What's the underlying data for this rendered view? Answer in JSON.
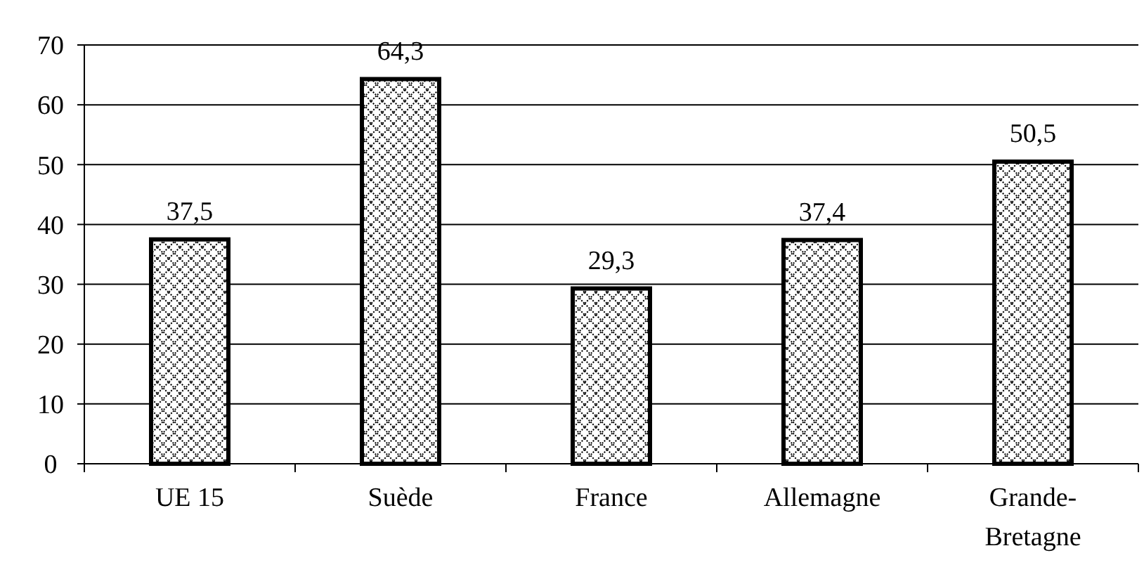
{
  "chart_data": {
    "type": "bar",
    "categories": [
      "UE 15",
      "Suède",
      "France",
      "Allemagne",
      "Grande-Bretagne"
    ],
    "values": [
      37.5,
      64.3,
      29.3,
      37.4,
      50.5
    ],
    "value_labels": [
      "37,5",
      "64,3",
      "29,3",
      "37,4",
      "50,5"
    ],
    "color": "#000000",
    "ylim": [
      0,
      70
    ],
    "yticks": [
      0,
      10,
      20,
      30,
      40,
      50,
      60,
      70
    ],
    "grid": "y"
  }
}
